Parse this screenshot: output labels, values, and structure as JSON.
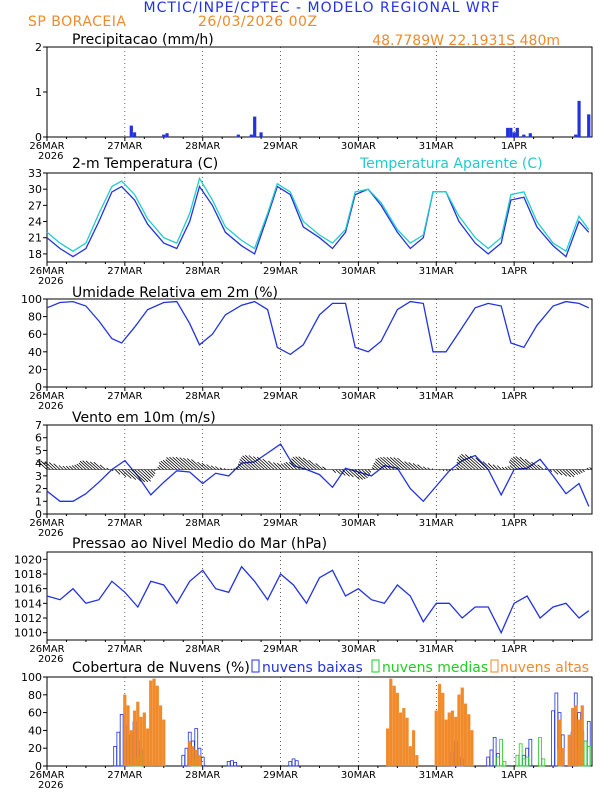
{
  "header": {
    "title": "MCTIC/INPE/CPTEC - MODELO REGIONAL WRF",
    "station": "SP BORACEIA",
    "run": "26/03/2026 00Z",
    "coords": "48.7789W 22.1931S 480m"
  },
  "colors": {
    "blue": "#2233dd",
    "cyan": "#22cccc",
    "orange": "#f08a2a",
    "green": "#22cc22",
    "black": "#000000"
  },
  "x_axis": {
    "days": [
      "26MAR",
      "27MAR",
      "28MAR",
      "29MAR",
      "30MAR",
      "31MAR",
      "1APR"
    ],
    "year": "2026",
    "hours_total": 168
  },
  "chart_data": [
    {
      "id": "precip",
      "type": "bar",
      "title": "Precipitacao (mm/h)",
      "ylim": [
        0,
        2
      ],
      "yticks": [
        0,
        1,
        2
      ],
      "series": [
        {
          "name": "precip",
          "color": "#2233dd",
          "hours": [
            26,
            27,
            36,
            37,
            59,
            63,
            64,
            66,
            142,
            143,
            144,
            145,
            147,
            149,
            163,
            164,
            167
          ],
          "values": [
            0.25,
            0.1,
            0.05,
            0.08,
            0.05,
            0.05,
            0.45,
            0.1,
            0.2,
            0.2,
            0.1,
            0.2,
            0.05,
            0.08,
            0.05,
            0.8,
            0.5
          ]
        }
      ]
    },
    {
      "id": "temp",
      "type": "line",
      "title": "2-m Temperatura (C)",
      "legend": "Temperatura Aparente (C)",
      "ylim": [
        16.5,
        33
      ],
      "yticks": [
        18,
        21,
        24,
        27,
        30,
        33
      ],
      "series": [
        {
          "name": "Temperatura",
          "color": "#2233dd",
          "hours": [
            0,
            4,
            8,
            12,
            16,
            20,
            23,
            27,
            31,
            36,
            40,
            44,
            47,
            51,
            55,
            60,
            64,
            68,
            71,
            75,
            79,
            84,
            88,
            92,
            95,
            99,
            103,
            108,
            112,
            116,
            119,
            123,
            127,
            132,
            136,
            140,
            143,
            147,
            151,
            156,
            160,
            164,
            167
          ],
          "values": [
            21,
            19,
            17.5,
            19,
            24,
            29.5,
            30.5,
            28,
            23.5,
            20,
            19,
            24,
            30.5,
            27,
            22,
            19.5,
            18,
            25,
            30.5,
            29,
            23,
            21,
            19,
            22,
            29,
            30,
            27,
            22,
            19,
            21,
            29.5,
            29.5,
            24,
            20,
            18,
            20,
            28,
            28.5,
            23,
            19.5,
            17.5,
            24,
            22
          ]
        },
        {
          "name": "Temperatura Aparente",
          "color": "#22cccc",
          "hours": [
            0,
            4,
            8,
            12,
            16,
            20,
            23,
            27,
            31,
            36,
            40,
            44,
            47,
            51,
            55,
            60,
            64,
            68,
            71,
            75,
            79,
            84,
            88,
            92,
            95,
            99,
            103,
            108,
            112,
            116,
            119,
            123,
            127,
            132,
            136,
            140,
            143,
            147,
            151,
            156,
            160,
            164,
            167
          ],
          "values": [
            22,
            20,
            18.5,
            20,
            25.5,
            30.5,
            31.5,
            29,
            24.5,
            21,
            20,
            25.5,
            32,
            28,
            23,
            20.5,
            19,
            25.5,
            31,
            29.5,
            24,
            21.5,
            20,
            22.5,
            29.5,
            30,
            27.5,
            22.5,
            20,
            21.5,
            29.5,
            29.5,
            25,
            21,
            19,
            21,
            29,
            29.5,
            24,
            20,
            18.5,
            25,
            22.5
          ]
        }
      ]
    },
    {
      "id": "rh",
      "type": "line",
      "title": "Umidade Relativa em 2m (%)",
      "ylim": [
        0,
        100
      ],
      "yticks": [
        0,
        20,
        40,
        60,
        80,
        100
      ],
      "series": [
        {
          "name": "UR",
          "color": "#2233dd",
          "hours": [
            0,
            4,
            8,
            12,
            16,
            20,
            23,
            27,
            31,
            36,
            40,
            44,
            47,
            51,
            55,
            60,
            64,
            68,
            71,
            75,
            79,
            84,
            88,
            92,
            95,
            99,
            103,
            108,
            112,
            116,
            119,
            123,
            127,
            132,
            136,
            140,
            143,
            147,
            151,
            156,
            160,
            164,
            167
          ],
          "values": [
            90,
            96,
            97,
            92,
            75,
            55,
            50,
            68,
            88,
            96,
            97,
            72,
            48,
            60,
            82,
            93,
            97,
            88,
            45,
            37,
            48,
            82,
            95,
            95,
            45,
            40,
            52,
            88,
            97,
            95,
            40,
            40,
            62,
            90,
            95,
            92,
            50,
            45,
            70,
            92,
            97,
            95,
            90
          ]
        }
      ]
    },
    {
      "id": "wind",
      "type": "line",
      "title": "Vento em 10m (m/s)",
      "ylim": [
        0,
        7
      ],
      "yticks": [
        0,
        1,
        2,
        3,
        4,
        5,
        6,
        7
      ],
      "series": [
        {
          "name": "Vento",
          "color": "#2233dd",
          "hours": [
            0,
            4,
            8,
            12,
            16,
            20,
            24,
            28,
            32,
            36,
            40,
            44,
            48,
            52,
            56,
            60,
            64,
            68,
            72,
            76,
            80,
            84,
            88,
            92,
            96,
            100,
            104,
            108,
            112,
            116,
            120,
            124,
            128,
            132,
            136,
            140,
            144,
            148,
            152,
            156,
            160,
            164,
            167
          ],
          "values": [
            1.8,
            1,
            1,
            1.6,
            2.5,
            3.5,
            4.2,
            3,
            1.5,
            2.5,
            3.4,
            3.3,
            2.4,
            3.2,
            3,
            4,
            4.1,
            4.8,
            5.5,
            3.8,
            3.5,
            3.1,
            2.1,
            3.6,
            3.3,
            3,
            3.8,
            3.6,
            2,
            1,
            2.2,
            3.4,
            4.2,
            4.6,
            3.5,
            1.5,
            3.5,
            3.6,
            4.3,
            3,
            1.6,
            2.4,
            0.6
          ]
        }
      ],
      "vectors": {
        "color": "#000000",
        "step_hours": 1
      }
    },
    {
      "id": "mslp",
      "type": "line",
      "title": "Pressao ao Nivel Medio do Mar (hPa)",
      "ylim": [
        1009,
        1021
      ],
      "yticks": [
        1010,
        1012,
        1014,
        1016,
        1018,
        1020
      ],
      "series": [
        {
          "name": "PNMM",
          "color": "#2233dd",
          "hours": [
            0,
            4,
            8,
            12,
            16,
            20,
            24,
            28,
            32,
            36,
            40,
            44,
            48,
            52,
            56,
            60,
            64,
            68,
            72,
            76,
            80,
            84,
            88,
            92,
            96,
            100,
            104,
            108,
            112,
            116,
            120,
            124,
            128,
            132,
            136,
            140,
            144,
            148,
            152,
            156,
            160,
            164,
            167
          ],
          "values": [
            1015,
            1014.5,
            1016,
            1014,
            1014.5,
            1017,
            1015.5,
            1013.5,
            1017,
            1016.5,
            1014,
            1017,
            1018.5,
            1016,
            1015.5,
            1019,
            1017,
            1014.5,
            1018,
            1016.5,
            1014,
            1017.5,
            1018.5,
            1015,
            1016,
            1014.5,
            1014,
            1016.5,
            1015,
            1011.5,
            1014,
            1014,
            1012,
            1013.5,
            1013.5,
            1010,
            1014,
            1015,
            1012,
            1013.5,
            1014,
            1012,
            1013
          ]
        }
      ]
    },
    {
      "id": "clouds",
      "type": "bar",
      "title": "Cobertura de Nuvens (%)",
      "legend": {
        "low": "nuvens baixas",
        "mid": "nuvens medias",
        "high": "nuvens altas"
      },
      "ylim": [
        0,
        100
      ],
      "yticks": [
        0,
        20,
        40,
        60,
        80,
        100
      ],
      "series": [
        {
          "name": "nuvens baixas",
          "color": "#2233dd",
          "style": "outline",
          "hours": [
            21,
            22,
            23,
            24,
            25,
            26,
            27,
            28,
            29,
            42,
            43,
            44,
            45,
            46,
            47,
            48,
            56,
            57,
            58,
            75,
            76,
            77,
            125,
            126,
            127,
            128,
            136,
            137,
            138,
            139,
            147,
            148,
            149,
            156,
            157,
            158,
            159,
            162,
            163,
            164,
            165,
            166,
            167
          ],
          "values": [
            22,
            38,
            58,
            45,
            30,
            35,
            50,
            28,
            18,
            12,
            20,
            38,
            28,
            42,
            20,
            10,
            5,
            6,
            4,
            5,
            8,
            6,
            15,
            28,
            10,
            8,
            10,
            18,
            32,
            14,
            12,
            20,
            30,
            62,
            82,
            60,
            35,
            38,
            82,
            60,
            38,
            28,
            50
          ]
        },
        {
          "name": "nuvens medias",
          "color": "#22cc22",
          "style": "outline",
          "hours": [
            26,
            27,
            28,
            29,
            45,
            46,
            47,
            139,
            140,
            141,
            145,
            146,
            147,
            148,
            152,
            153,
            158,
            164,
            165,
            166,
            167
          ],
          "values": [
            2,
            6,
            10,
            12,
            5,
            8,
            4,
            10,
            30,
            5,
            12,
            25,
            8,
            10,
            32,
            8,
            18,
            18,
            40,
            28,
            22
          ]
        },
        {
          "name": "nuvens altas",
          "color": "#f08a2a",
          "style": "fill",
          "hours": [
            24,
            25,
            26,
            27,
            28,
            29,
            30,
            31,
            32,
            33,
            34,
            35,
            36,
            44,
            45,
            46,
            47,
            105,
            106,
            107,
            108,
            109,
            110,
            111,
            112,
            113,
            114,
            120,
            121,
            122,
            123,
            124,
            125,
            126,
            127,
            128,
            129,
            130,
            131,
            158,
            159,
            161,
            162,
            163,
            164,
            165
          ],
          "values": [
            80,
            68,
            40,
            62,
            72,
            55,
            60,
            42,
            96,
            98,
            90,
            68,
            52,
            28,
            22,
            18,
            12,
            42,
            98,
            90,
            82,
            60,
            65,
            54,
            22,
            40,
            12,
            62,
            92,
            82,
            52,
            60,
            62,
            55,
            80,
            88,
            70,
            58,
            40,
            52,
            20,
            35,
            65,
            68,
            52,
            68
          ]
        }
      ]
    }
  ]
}
